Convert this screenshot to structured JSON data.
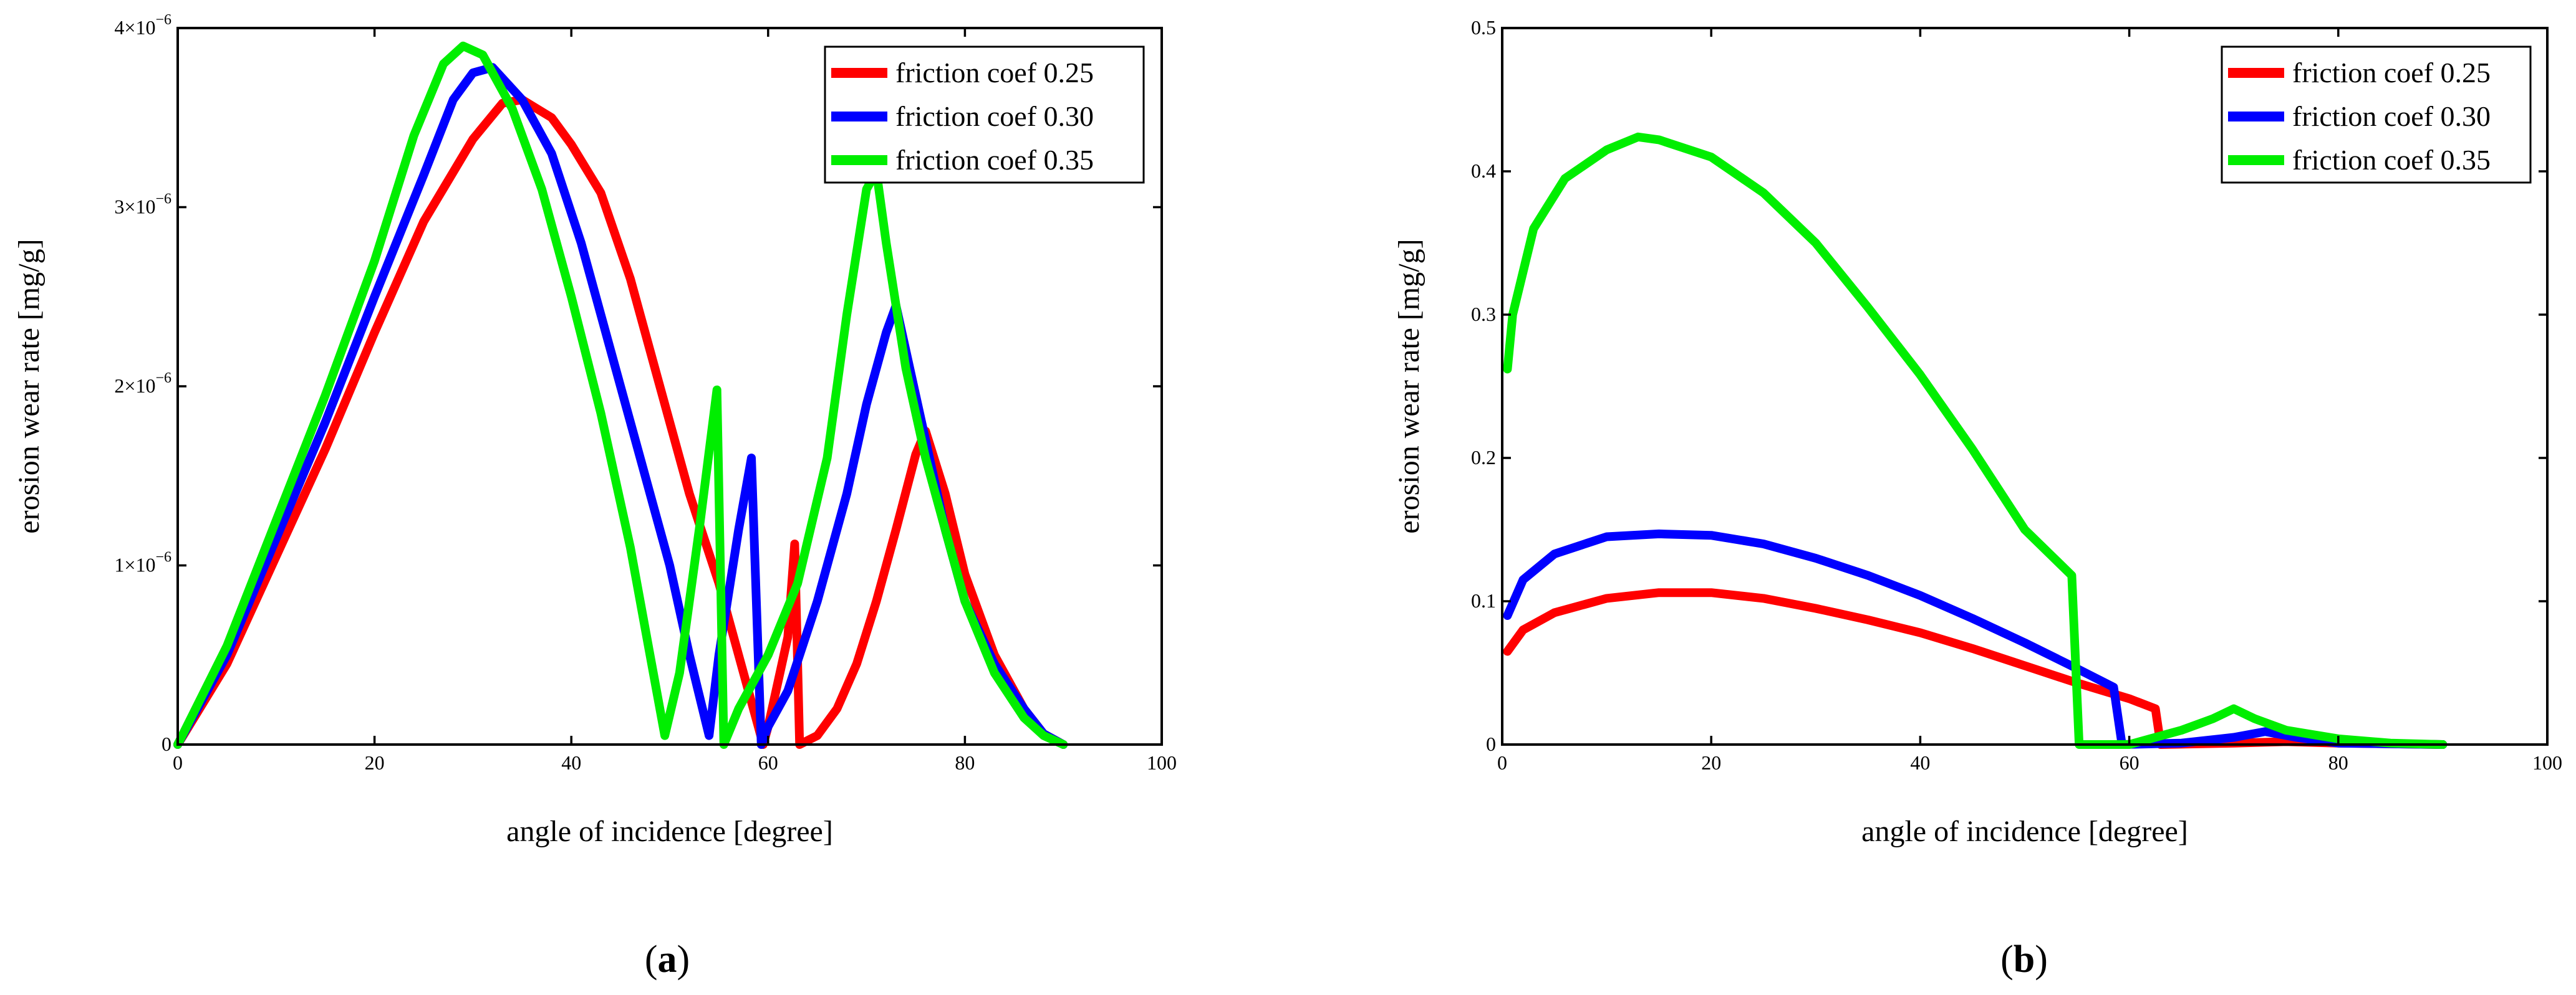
{
  "chart_data": [
    {
      "type": "line",
      "panel": "a",
      "caption_letter": "a",
      "xlabel": "angle of incidence [degree]",
      "ylabel": "erosion wear rate [mg/g]",
      "xlim": [
        0,
        100
      ],
      "ylim": [
        0,
        4e-06
      ],
      "xticks": [
        0,
        20,
        40,
        60,
        80,
        100
      ],
      "yticks": [
        0,
        1e-06,
        2e-06,
        3e-06,
        4e-06
      ],
      "ytick_labels": [
        {
          "mantissa": "0",
          "exp": ""
        },
        {
          "mantissa": "1×10",
          "exp": "−6"
        },
        {
          "mantissa": "2×10",
          "exp": "−6"
        },
        {
          "mantissa": "3×10",
          "exp": "−6"
        },
        {
          "mantissa": "4×10",
          "exp": "−6"
        }
      ],
      "legend_position": "top-right",
      "series": [
        {
          "name": "friction coef 0.25",
          "color": "#ff0000",
          "points": [
            [
              0,
              0
            ],
            [
              5,
              4.5e-07
            ],
            [
              10,
              1.05e-06
            ],
            [
              15,
              1.65e-06
            ],
            [
              20,
              2.3e-06
            ],
            [
              25,
              2.92e-06
            ],
            [
              30,
              3.38e-06
            ],
            [
              33,
              3.58e-06
            ],
            [
              35,
              3.6e-06
            ],
            [
              38,
              3.5e-06
            ],
            [
              40,
              3.35e-06
            ],
            [
              43,
              3.08e-06
            ],
            [
              46,
              2.6e-06
            ],
            [
              49,
              2e-06
            ],
            [
              52,
              1.4e-06
            ],
            [
              55,
              9e-07
            ],
            [
              58,
              3e-07
            ],
            [
              59.5,
              0
            ],
            [
              60,
              1e-07
            ],
            [
              62,
              6e-07
            ],
            [
              62.7,
              1.12e-06
            ],
            [
              63.2,
              0
            ],
            [
              65,
              5e-08
            ],
            [
              67,
              2e-07
            ],
            [
              69,
              4.5e-07
            ],
            [
              71,
              8e-07
            ],
            [
              73,
              1.2e-06
            ],
            [
              75,
              1.62e-06
            ],
            [
              76,
              1.75e-06
            ],
            [
              78,
              1.4e-06
            ],
            [
              80,
              9.5e-07
            ],
            [
              83,
              5e-07
            ],
            [
              86,
              2e-07
            ],
            [
              88,
              6e-08
            ],
            [
              90,
              0
            ]
          ]
        },
        {
          "name": "friction coef 0.30",
          "color": "#0000ff",
          "points": [
            [
              0,
              0
            ],
            [
              5,
              5e-07
            ],
            [
              10,
              1.15e-06
            ],
            [
              15,
              1.8e-06
            ],
            [
              20,
              2.5e-06
            ],
            [
              25,
              3.18e-06
            ],
            [
              28,
              3.6e-06
            ],
            [
              30,
              3.75e-06
            ],
            [
              32,
              3.78e-06
            ],
            [
              35,
              3.6e-06
            ],
            [
              38,
              3.3e-06
            ],
            [
              41,
              2.8e-06
            ],
            [
              44,
              2.2e-06
            ],
            [
              47,
              1.6e-06
            ],
            [
              50,
              1e-06
            ],
            [
              52,
              5e-07
            ],
            [
              54,
              5e-08
            ],
            [
              55,
              5e-07
            ],
            [
              57,
              1.2e-06
            ],
            [
              58.3,
              1.6e-06
            ],
            [
              59.3,
              0
            ],
            [
              60,
              1e-07
            ],
            [
              62,
              3e-07
            ],
            [
              65,
              8e-07
            ],
            [
              68,
              1.4e-06
            ],
            [
              70,
              1.9e-06
            ],
            [
              72,
              2.3e-06
            ],
            [
              73,
              2.45e-06
            ],
            [
              74,
              2.2e-06
            ],
            [
              76,
              1.7e-06
            ],
            [
              78,
              1.2e-06
            ],
            [
              80,
              8e-07
            ],
            [
              83,
              4.5e-07
            ],
            [
              86,
              2e-07
            ],
            [
              88,
              6e-08
            ],
            [
              90,
              0
            ]
          ]
        },
        {
          "name": "friction coef 0.35",
          "color": "#00ee00",
          "points": [
            [
              0,
              0
            ],
            [
              5,
              5.5e-07
            ],
            [
              10,
              1.25e-06
            ],
            [
              15,
              1.95e-06
            ],
            [
              20,
              2.7e-06
            ],
            [
              24,
              3.4e-06
            ],
            [
              27,
              3.8e-06
            ],
            [
              29,
              3.9e-06
            ],
            [
              31,
              3.85e-06
            ],
            [
              34,
              3.55e-06
            ],
            [
              37,
              3.1e-06
            ],
            [
              40,
              2.5e-06
            ],
            [
              43,
              1.85e-06
            ],
            [
              46,
              1.1e-06
            ],
            [
              48,
              5e-07
            ],
            [
              49.5,
              5e-08
            ],
            [
              51,
              4e-07
            ],
            [
              53,
              1.2e-06
            ],
            [
              54.8,
              1.98e-06
            ],
            [
              55.5,
              0
            ],
            [
              57,
              2e-07
            ],
            [
              60,
              5e-07
            ],
            [
              63,
              9e-07
            ],
            [
              66,
              1.6e-06
            ],
            [
              68,
              2.4e-06
            ],
            [
              70,
              3.1e-06
            ],
            [
              71,
              3.2e-06
            ],
            [
              72,
              2.8e-06
            ],
            [
              74,
              2.1e-06
            ],
            [
              76,
              1.6e-06
            ],
            [
              78,
              1.2e-06
            ],
            [
              80,
              8e-07
            ],
            [
              83,
              4e-07
            ],
            [
              86,
              1.5e-07
            ],
            [
              88,
              5e-08
            ],
            [
              90,
              0
            ]
          ]
        }
      ]
    },
    {
      "type": "line",
      "panel": "b",
      "caption_letter": "b",
      "xlabel": "angle of incidence [degree]",
      "ylabel": "erosion wear rate [mg/g]",
      "xlim": [
        0,
        100
      ],
      "ylim": [
        0,
        0.5
      ],
      "xticks": [
        0,
        20,
        40,
        60,
        80,
        100
      ],
      "yticks": [
        0,
        0.1,
        0.2,
        0.3,
        0.4,
        0.5
      ],
      "ytick_labels": [
        {
          "mantissa": "0",
          "exp": ""
        },
        {
          "mantissa": "0.1",
          "exp": ""
        },
        {
          "mantissa": "0.2",
          "exp": ""
        },
        {
          "mantissa": "0.3",
          "exp": ""
        },
        {
          "mantissa": "0.4",
          "exp": ""
        },
        {
          "mantissa": "0.5",
          "exp": ""
        }
      ],
      "legend_position": "top-right",
      "series": [
        {
          "name": "friction coef 0.25",
          "color": "#ff0000",
          "points": [
            [
              0.5,
              0.065
            ],
            [
              2,
              0.08
            ],
            [
              5,
              0.092
            ],
            [
              10,
              0.102
            ],
            [
              15,
              0.106
            ],
            [
              20,
              0.106
            ],
            [
              25,
              0.102
            ],
            [
              30,
              0.095
            ],
            [
              35,
              0.087
            ],
            [
              40,
              0.078
            ],
            [
              45,
              0.067
            ],
            [
              50,
              0.055
            ],
            [
              55,
              0.043
            ],
            [
              60,
              0.032
            ],
            [
              62.5,
              0.025
            ],
            [
              63,
              0
            ],
            [
              70,
              0.001
            ],
            [
              75,
              0.002
            ],
            [
              80,
              0.001
            ],
            [
              90,
              0
            ]
          ]
        },
        {
          "name": "friction coef 0.30",
          "color": "#0000ff",
          "points": [
            [
              0.5,
              0.09
            ],
            [
              2,
              0.115
            ],
            [
              5,
              0.133
            ],
            [
              10,
              0.145
            ],
            [
              15,
              0.147
            ],
            [
              20,
              0.146
            ],
            [
              25,
              0.14
            ],
            [
              30,
              0.13
            ],
            [
              35,
              0.118
            ],
            [
              40,
              0.104
            ],
            [
              45,
              0.088
            ],
            [
              50,
              0.071
            ],
            [
              55,
              0.053
            ],
            [
              58.5,
              0.04
            ],
            [
              59.3,
              0
            ],
            [
              65,
              0.001
            ],
            [
              70,
              0.005
            ],
            [
              73,
              0.009
            ],
            [
              76,
              0.005
            ],
            [
              80,
              0.001
            ],
            [
              90,
              0
            ]
          ]
        },
        {
          "name": "friction coef 0.35",
          "color": "#00ee00",
          "points": [
            [
              0.5,
              0.262
            ],
            [
              1,
              0.3
            ],
            [
              3,
              0.36
            ],
            [
              6,
              0.395
            ],
            [
              10,
              0.415
            ],
            [
              13,
              0.424
            ],
            [
              15,
              0.422
            ],
            [
              20,
              0.41
            ],
            [
              25,
              0.385
            ],
            [
              30,
              0.35
            ],
            [
              35,
              0.305
            ],
            [
              40,
              0.258
            ],
            [
              45,
              0.206
            ],
            [
              50,
              0.15
            ],
            [
              54.5,
              0.118
            ],
            [
              55.2,
              0
            ],
            [
              60,
              0
            ],
            [
              62,
              0.004
            ],
            [
              65,
              0.01
            ],
            [
              68,
              0.018
            ],
            [
              70,
              0.025
            ],
            [
              72,
              0.018
            ],
            [
              75,
              0.01
            ],
            [
              80,
              0.004
            ],
            [
              85,
              0.001
            ],
            [
              90,
              0
            ]
          ]
        }
      ]
    }
  ]
}
